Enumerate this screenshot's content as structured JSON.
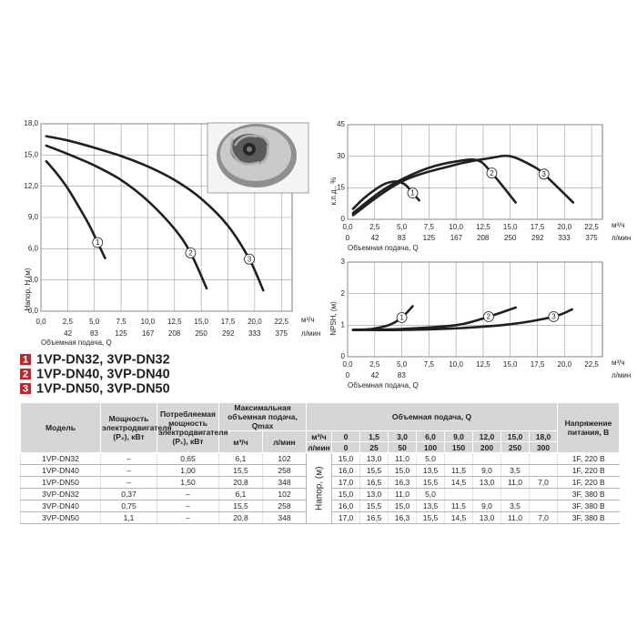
{
  "chart_data": [
    {
      "type": "line",
      "ylabel": "Напор, H (м)",
      "xlabel": "Объемная подача, Q",
      "x_unit": "м³/ч",
      "x2_unit": "л/мин",
      "xlim": [
        0,
        23.5
      ],
      "x2lim": [
        0,
        391.7
      ],
      "ylim": [
        0,
        18
      ],
      "grid": true,
      "xticks": [
        {
          "value": 0,
          "label": "0,0"
        },
        {
          "value": 2.5,
          "label": "2,5"
        },
        {
          "value": 5,
          "label": "5,0"
        },
        {
          "value": 7.5,
          "label": "7,5"
        },
        {
          "value": 10,
          "label": "10,0"
        },
        {
          "value": 12.5,
          "label": "12,5"
        },
        {
          "value": 15,
          "label": "15,0"
        },
        {
          "value": 17.5,
          "label": "17,5"
        },
        {
          "value": 20,
          "label": "20,0"
        },
        {
          "value": 22.5,
          "label": "22,5"
        }
      ],
      "x2ticks": [
        42,
        83,
        125,
        167,
        208,
        250,
        292,
        333,
        375
      ],
      "yticks": [
        {
          "value": 0,
          "label": "0,0"
        },
        {
          "value": 3,
          "label": "3,0"
        },
        {
          "value": 6,
          "label": "6,0"
        },
        {
          "value": 9,
          "label": "9,0"
        },
        {
          "value": 12,
          "label": "12,0"
        },
        {
          "value": 15,
          "label": "15,0"
        },
        {
          "value": 18,
          "label": "18,0"
        }
      ],
      "series": [
        {
          "name": "1",
          "color": "#231f20",
          "x": [
            0.5,
            1.5,
            2.5,
            3.5,
            4.5,
            5.3,
            6.0
          ],
          "values": [
            14.4,
            13.2,
            11.8,
            10.1,
            8.3,
            6.6,
            5.1
          ]
        },
        {
          "name": "2",
          "color": "#231f20",
          "x": [
            0.5,
            2.5,
            5,
            7.5,
            10,
            12.5,
            14,
            15.5
          ],
          "values": [
            15.9,
            15.1,
            14.0,
            12.6,
            10.6,
            7.9,
            5.6,
            2.2
          ]
        },
        {
          "name": "3",
          "color": "#231f20",
          "x": [
            0.5,
            2.5,
            5,
            7.5,
            10,
            12.5,
            15,
            17.5,
            19.5,
            20.8
          ],
          "values": [
            16.8,
            16.4,
            15.7,
            14.9,
            13.9,
            12.6,
            10.8,
            8.2,
            5.0,
            2.0
          ]
        }
      ]
    },
    {
      "type": "line",
      "ylabel": "к.п.д., %",
      "xlabel": "Объемная подача, Q",
      "x_unit": "м³/ч",
      "x2_unit": "л/мин",
      "xlim": [
        0,
        23.5
      ],
      "x2lim": [
        0,
        391.7
      ],
      "ylim": [
        0,
        45
      ],
      "grid": true,
      "xticks": [
        {
          "value": 0,
          "label": "0,0"
        },
        {
          "value": 2.5,
          "label": "2,5"
        },
        {
          "value": 5,
          "label": "5,0"
        },
        {
          "value": 7.5,
          "label": "7,5"
        },
        {
          "value": 10,
          "label": "10,0"
        },
        {
          "value": 12.5,
          "label": "12,5"
        },
        {
          "value": 15,
          "label": "15,0"
        },
        {
          "value": 17.5,
          "label": "17,5"
        },
        {
          "value": 20,
          "label": "20,0"
        },
        {
          "value": 22.5,
          "label": "22,5"
        }
      ],
      "x2ticks": [
        0,
        42,
        83,
        125,
        167,
        208,
        250,
        292,
        333,
        375
      ],
      "yticks": [
        0,
        15,
        30,
        45
      ],
      "series": [
        {
          "name": "1",
          "color": "#231f20",
          "x": [
            0.5,
            1.5,
            2.5,
            3.5,
            4.5,
            5.3,
            6.0,
            6.6
          ],
          "values": [
            5,
            10,
            14,
            17,
            18,
            16.5,
            12.5,
            9
          ]
        },
        {
          "name": "2",
          "color": "#231f20",
          "x": [
            0.5,
            3,
            5,
            7.5,
            10,
            12,
            13.3,
            15.5
          ],
          "values": [
            3,
            13,
            19,
            24.5,
            27.5,
            28,
            22,
            8
          ]
        },
        {
          "name": "3",
          "color": "#231f20",
          "x": [
            0.5,
            5,
            10,
            13,
            15,
            17,
            18.1,
            20.8
          ],
          "values": [
            2,
            18,
            26,
            29,
            30,
            25.5,
            21.5,
            8
          ]
        }
      ]
    },
    {
      "type": "line",
      "ylabel": "NPSH, (м)",
      "xlabel": "Объемная подача, Q",
      "x_unit": "м³/ч",
      "x2_unit": "л/мин",
      "xlim": [
        0,
        23.5
      ],
      "x2lim": [
        0,
        391.7
      ],
      "ylim": [
        0,
        3
      ],
      "grid": true,
      "xticks": [
        {
          "value": 0,
          "label": "0,0"
        },
        {
          "value": 2.5,
          "label": "2,5"
        },
        {
          "value": 5,
          "label": "5,0"
        },
        {
          "value": 7.5,
          "label": "7,5"
        },
        {
          "value": 10,
          "label": "10,0"
        },
        {
          "value": 12.5,
          "label": "12,5"
        },
        {
          "value": 15,
          "label": "15,0"
        },
        {
          "value": 17.5,
          "label": "17,5"
        },
        {
          "value": 20,
          "label": "20,0"
        },
        {
          "value": 22.5,
          "label": "22,5"
        }
      ],
      "x2ticks": [
        0,
        42,
        83
      ],
      "yticks": [
        0,
        1,
        2,
        3
      ],
      "series": [
        {
          "name": "1",
          "color": "#231f20",
          "x": [
            0.5,
            2,
            3,
            4,
            5,
            6
          ],
          "values": [
            0.85,
            0.87,
            0.93,
            1.03,
            1.24,
            1.6
          ]
        },
        {
          "name": "2",
          "color": "#231f20",
          "x": [
            0.5,
            5,
            10,
            13,
            15.5
          ],
          "values": [
            0.85,
            0.88,
            1.0,
            1.27,
            1.56
          ]
        },
        {
          "name": "3",
          "color": "#231f20",
          "x": [
            0.5,
            5,
            10,
            15,
            19,
            20.7
          ],
          "values": [
            0.85,
            0.85,
            0.9,
            1.03,
            1.27,
            1.5
          ]
        }
      ]
    }
  ],
  "legend": [
    {
      "number": "1",
      "label": "1VP-DN32, 3VP-DN32"
    },
    {
      "number": "2",
      "label": "1VP-DN40, 3VP-DN40"
    },
    {
      "number": "3",
      "label": "1VP-DN50, 3VP-DN50"
    }
  ],
  "table": {
    "headers": {
      "model": "Модель",
      "p2": "Мощность электродвигателя (P₂), кВт",
      "p1": "Потребляемая мощность электродвигателя (P₁), кВт",
      "qmax": "Максимальная объемная подача, Qmax",
      "q": "Объемная подача, Q",
      "voltage": "Напряжение питания, В"
    },
    "qmax_units": [
      "м³/ч",
      "л/мин"
    ],
    "q_rows": [
      {
        "unit": "м³/ч",
        "values": [
          "0",
          "1,5",
          "3,0",
          "6,0",
          "9,0",
          "12,0",
          "15,0",
          "18,0"
        ]
      },
      {
        "unit": "л/мин",
        "values": [
          "0",
          "25",
          "50",
          "100",
          "150",
          "200",
          "250",
          "300"
        ]
      }
    ],
    "head_label": "Напор, (м)",
    "rows": [
      {
        "model": "1VP-DN32",
        "p2": "–",
        "p1": "0,65",
        "qmax_m3h": "6,1",
        "qmax_lmin": "102",
        "head": [
          "15,0",
          "13,0",
          "11,0",
          "5,0"
        ],
        "voltage": "1F, 220 В"
      },
      {
        "model": "1VP-DN40",
        "p2": "–",
        "p1": "1,00",
        "qmax_m3h": "15,5",
        "qmax_lmin": "258",
        "head": [
          "16,0",
          "15,5",
          "15,0",
          "13,5",
          "11,5",
          "9,0",
          "3,5"
        ],
        "voltage": "1F, 220 В"
      },
      {
        "model": "1VP-DN50",
        "p2": "–",
        "p1": "1,50",
        "qmax_m3h": "20,8",
        "qmax_lmin": "348",
        "head": [
          "17,0",
          "16,5",
          "16,3",
          "15,5",
          "14,5",
          "13,0",
          "11,0",
          "7,0"
        ],
        "voltage": "1F, 220 В"
      },
      {
        "model": "3VP-DN32",
        "p2": "0,37",
        "p1": "–",
        "qmax_m3h": "6,1",
        "qmax_lmin": "102",
        "head": [
          "15,0",
          "13,0",
          "11,0",
          "5,0"
        ],
        "voltage": "3F, 380 В"
      },
      {
        "model": "3VP-DN40",
        "p2": "0,75",
        "p1": "–",
        "qmax_m3h": "15,5",
        "qmax_lmin": "258",
        "head": [
          "16,0",
          "15,5",
          "15,0",
          "13,5",
          "11,5",
          "9,0",
          "3,5"
        ],
        "voltage": "3F, 380 В"
      },
      {
        "model": "3VP-DN50",
        "p2": "1,1",
        "p1": "–",
        "qmax_m3h": "20,8",
        "qmax_lmin": "348",
        "head": [
          "17,0",
          "16,5",
          "16,3",
          "15,5",
          "14,5",
          "13,0",
          "11,0",
          "7,0"
        ],
        "voltage": "3F, 380 В"
      }
    ]
  }
}
